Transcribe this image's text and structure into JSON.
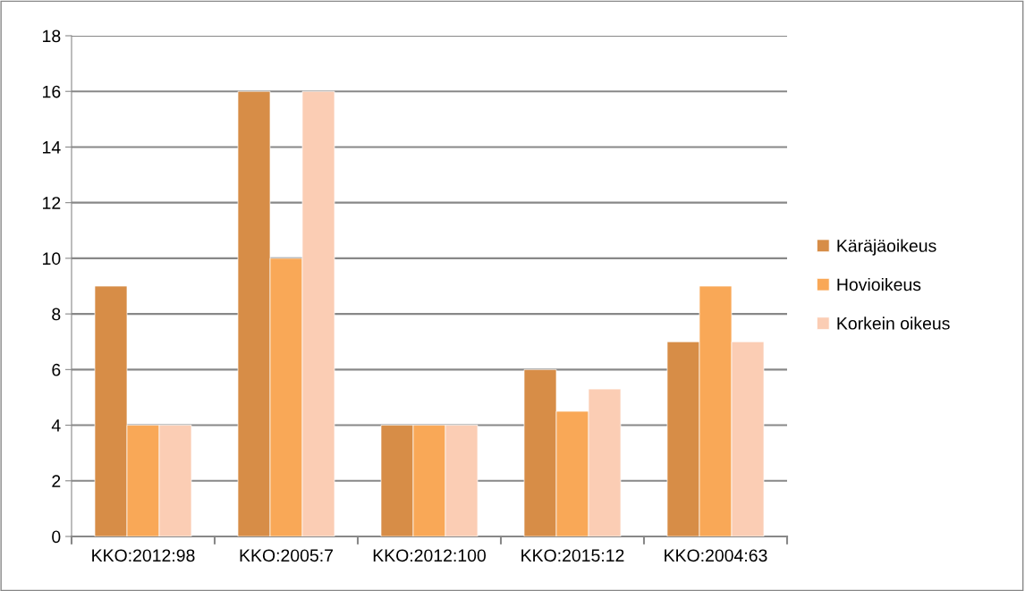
{
  "chart_data": {
    "type": "bar",
    "categories": [
      "KKO:2012:98",
      "KKO:2005:7",
      "KKO:2012:100",
      "KKO:2015:12",
      "KKO:2004:63"
    ],
    "series": [
      {
        "name": "Käräjäoikeus",
        "color": "#d78d47",
        "values": [
          9,
          16,
          4,
          6,
          7
        ]
      },
      {
        "name": "Hovioikeus",
        "color": "#f9a857",
        "values": [
          4,
          10,
          4,
          4.5,
          9
        ]
      },
      {
        "name": "Korkein oikeus",
        "color": "#fbcdb4",
        "values": [
          4,
          16,
          4,
          5.3,
          7
        ]
      }
    ],
    "ylim": [
      0,
      18
    ],
    "yticks": [
      0,
      2,
      4,
      6,
      8,
      10,
      12,
      14,
      16,
      18
    ],
    "grid": "y",
    "legend": "right"
  }
}
